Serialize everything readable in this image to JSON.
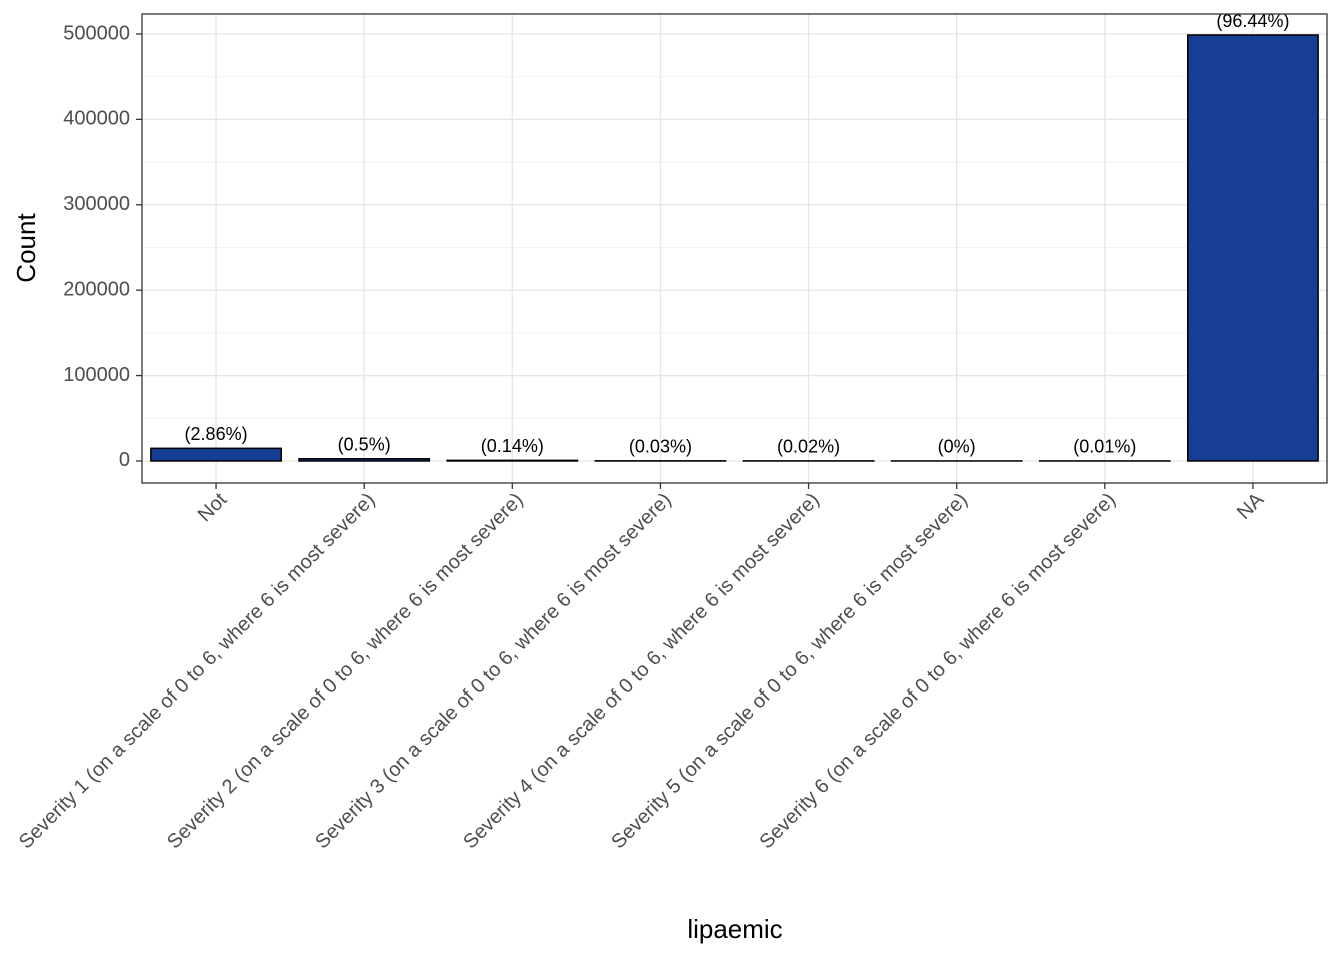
{
  "chart_data": {
    "type": "bar",
    "xlabel": "lipaemic",
    "ylabel": "Count",
    "categories": [
      "Not",
      "Severity 1 (on a scale of 0 to 6, where 6 is most severe)",
      "Severity 2 (on a scale of 0 to 6, where 6 is most severe)",
      "Severity 3 (on a scale of 0 to 6, where 6 is most severe)",
      "Severity 4 (on a scale of 0 to 6, where 6 is most severe)",
      "Severity 5 (on a scale of 0 to 6, where 6 is most severe)",
      "Severity 6 (on a scale of 0 to 6, where 6 is most severe)",
      "NA"
    ],
    "values": [
      14792,
      2586,
      724,
      155,
      103,
      10,
      52,
      498800
    ],
    "annotations": [
      "(2.86%)",
      "(0.5%)",
      "(0.14%)",
      "(0.03%)",
      "(0.02%)",
      "(0%)",
      "(0.01%)",
      "(96.44%)"
    ],
    "color": "#163f93",
    "ylim": [
      -25800,
      523400
    ],
    "yticks": [
      0,
      100000,
      200000,
      300000,
      400000,
      500000
    ],
    "yminor_ticks": [
      50000,
      150000,
      250000,
      350000,
      450000
    ],
    "grid": true
  }
}
